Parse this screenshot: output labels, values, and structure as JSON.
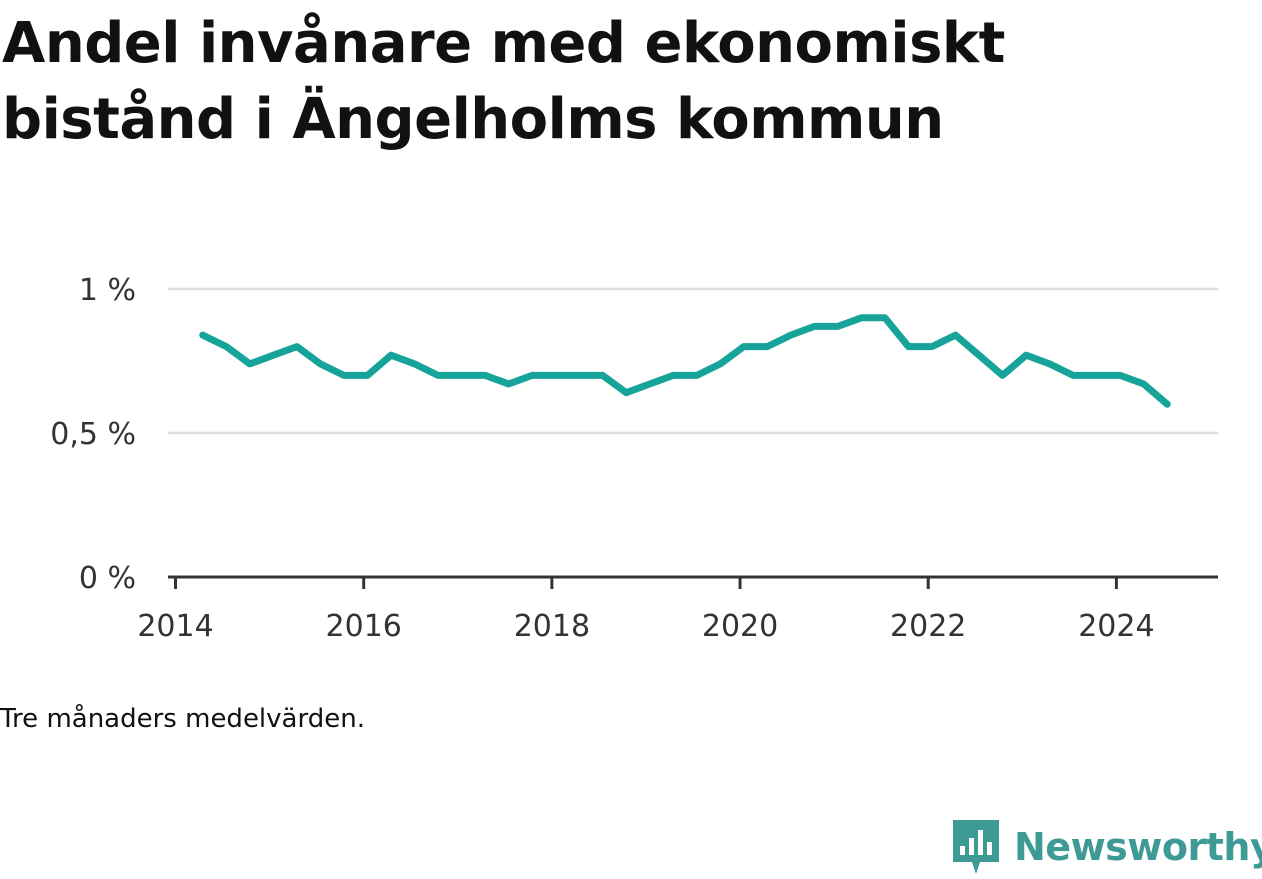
{
  "title": "Andel invånare med ekonomiskt bistånd i Ängelholms kommun",
  "note": "Tre månaders medelvärden.",
  "brand": {
    "name": "Newsworthy",
    "color": "#3d9a95",
    "icon": "newsworthy-logo-icon"
  },
  "chart_data": {
    "type": "line",
    "title": "Andel invånare med ekonomiskt bistånd i Ängelholms kommun",
    "xlabel": "",
    "ylabel": "",
    "xlim": [
      2013.92,
      2025.08
    ],
    "ylim": [
      0,
      1
    ],
    "y_ticks": [
      {
        "value": 0,
        "label": "0 %"
      },
      {
        "value": 0.5,
        "label": "0,5 %"
      },
      {
        "value": 1,
        "label": "1 %"
      }
    ],
    "x_ticks": [
      2014,
      2016,
      2018,
      2020,
      2022,
      2024
    ],
    "grid": true,
    "line_color": "#16a39a",
    "series": [
      {
        "x": [
          2014.29,
          2014.54,
          2014.79,
          2015.04,
          2015.29,
          2015.54,
          2015.79,
          2016.04,
          2016.29,
          2016.54,
          2016.79,
          2017.04,
          2017.29,
          2017.54,
          2017.79,
          2018.04,
          2018.29,
          2018.54,
          2018.79,
          2019.04,
          2019.29,
          2019.54,
          2019.79,
          2020.04,
          2020.29,
          2020.54,
          2020.79,
          2021.04,
          2021.29,
          2021.54,
          2021.79,
          2022.04,
          2022.29,
          2022.54,
          2022.79,
          2023.04,
          2023.29,
          2023.54,
          2023.79,
          2024.04,
          2024.29,
          2024.54
        ],
        "values": [
          0.84,
          0.8,
          0.74,
          0.77,
          0.8,
          0.74,
          0.7,
          0.7,
          0.77,
          0.74,
          0.7,
          0.7,
          0.7,
          0.67,
          0.7,
          0.7,
          0.7,
          0.7,
          0.64,
          0.67,
          0.7,
          0.7,
          0.74,
          0.8,
          0.8,
          0.84,
          0.87,
          0.87,
          0.9,
          0.9,
          0.8,
          0.8,
          0.84,
          0.77,
          0.7,
          0.77,
          0.74,
          0.7,
          0.7,
          0.7,
          0.67,
          0.6
        ]
      }
    ]
  }
}
